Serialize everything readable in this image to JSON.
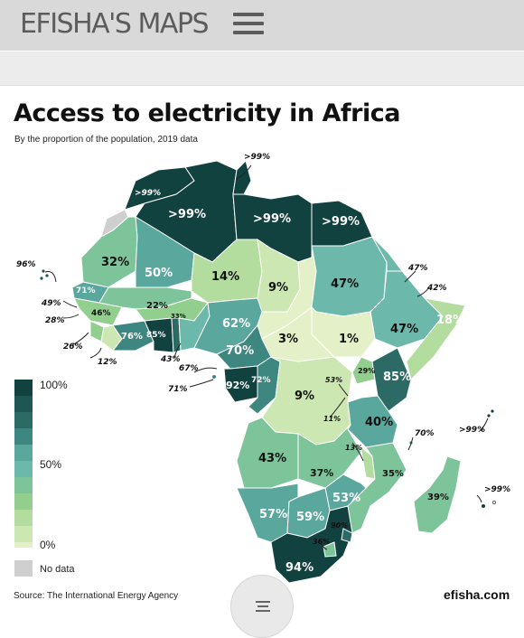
{
  "header": {
    "brand": "EFISHA'S MAPS",
    "menu_icon": "hamburger-icon"
  },
  "map": {
    "title": "Access to electricity in Africa",
    "subtitle": "By the proportion of the population, 2019 data",
    "colors": {
      "c100": "#12423f",
      "c90": "#1d5652",
      "c85": "#2b6a65",
      "c75": "#3e8780",
      "c60": "#59a79d",
      "c50": "#6cb8aa",
      "c40": "#7ec49a",
      "c30": "#92cf8e",
      "c20": "#b3dc9f",
      "c10": "#cde7b2",
      "c0": "#e4f1c8",
      "nodata": "#cfcfcf"
    },
    "labels": {
      "algeria": ">99%",
      "libya": ">99%",
      "egypt": ">99%",
      "tunisia": ">99%",
      "morocco_top": ">99%",
      "western_sahara": "32%",
      "mauritania": "50%",
      "mali": "14%",
      "niger": "9%",
      "chad": "9%",
      "sudan": "47%",
      "eritrea": "47%",
      "djibouti": "42%",
      "somalia": "18%",
      "ethiopia": "47%",
      "south_sudan": "1%",
      "car": "3%",
      "nigeria": "62%",
      "cameroon": "70%",
      "ghana": "85%",
      "togo": "76%",
      "burkina": "22%",
      "benin": "33%",
      "senegal": "71%",
      "gambia": "49%",
      "guinea_bissau": "28%",
      "guinea": "46%",
      "sierra_leone": "26%",
      "liberia": "12%",
      "ivory": "43%",
      "eq_guinea": "67%",
      "sao_tome": "71%",
      "gabon": "92%",
      "congo": "72%",
      "drc": "9%",
      "uganda": "29%",
      "kenya": "85%",
      "rwanda": "53%",
      "burundi": "11%",
      "tanzania": "40%",
      "seychelles": ">99%",
      "comoros": "70%",
      "angola": "43%",
      "zambia": "37%",
      "malawi": "13%",
      "mozambique": "35%",
      "madagascar": "39%",
      "mauritius": ">99%",
      "namibia": "57%",
      "botswana": "59%",
      "zimbabwe": "53%",
      "eswatini": "90%",
      "lesotho": "36%",
      "south_africa": "94%",
      "cape_verde": "96%"
    }
  },
  "legend": {
    "top": "100%",
    "mid": "50%",
    "bottom": "0%",
    "no_data": "No data"
  },
  "footer": {
    "source": "Source: The International Energy Agency",
    "site": "efisha.com"
  }
}
